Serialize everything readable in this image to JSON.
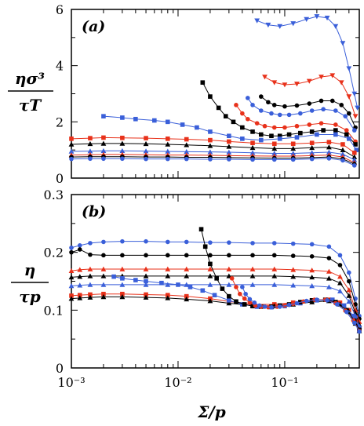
{
  "chart_data": [
    {
      "type": "line",
      "panel_tag": "(a)",
      "ylabel_num": "ησ³",
      "ylabel_den": "τT",
      "xscale": "log",
      "xlim": [
        0.001,
        0.5
      ],
      "ylim": [
        0,
        6
      ],
      "ytick_labels": [
        "0",
        "2",
        "4",
        "6"
      ],
      "series": [
        {
          "color": "#3a5fd9",
          "marker": "tri-down",
          "x": [
            0.055,
            0.07,
            0.09,
            0.12,
            0.16,
            0.2,
            0.25,
            0.3,
            0.35,
            0.4,
            0.45,
            0.48
          ],
          "y": [
            5.6,
            5.45,
            5.4,
            5.5,
            5.65,
            5.75,
            5.7,
            5.4,
            4.8,
            3.9,
            3.0,
            2.5
          ]
        },
        {
          "color": "#e8311a",
          "marker": "tri-down",
          "x": [
            0.065,
            0.08,
            0.1,
            0.13,
            0.17,
            0.22,
            0.28,
            0.34,
            0.4,
            0.46
          ],
          "y": [
            3.6,
            3.4,
            3.32,
            3.35,
            3.45,
            3.6,
            3.65,
            3.4,
            2.9,
            2.2
          ]
        },
        {
          "color": "#000000",
          "marker": "circle",
          "x": [
            0.06,
            0.07,
            0.08,
            0.1,
            0.13,
            0.17,
            0.22,
            0.28,
            0.34,
            0.4,
            0.46
          ],
          "y": [
            2.9,
            2.7,
            2.6,
            2.55,
            2.58,
            2.65,
            2.75,
            2.75,
            2.6,
            2.3,
            1.8
          ]
        },
        {
          "color": "#3a5fd9",
          "marker": "circle",
          "x": [
            0.045,
            0.05,
            0.06,
            0.075,
            0.09,
            0.11,
            0.14,
            0.18,
            0.23,
            0.3,
            0.37,
            0.45
          ],
          "y": [
            2.85,
            2.6,
            2.4,
            2.3,
            2.25,
            2.25,
            2.3,
            2.4,
            2.45,
            2.4,
            2.2,
            1.7
          ]
        },
        {
          "color": "#e8311a",
          "marker": "circle",
          "x": [
            0.035,
            0.04,
            0.045,
            0.055,
            0.065,
            0.08,
            0.1,
            0.13,
            0.17,
            0.22,
            0.3,
            0.38,
            0.46
          ],
          "y": [
            2.6,
            2.3,
            2.1,
            1.95,
            1.85,
            1.8,
            1.8,
            1.85,
            1.9,
            1.95,
            1.9,
            1.7,
            1.3
          ]
        },
        {
          "color": "#000000",
          "marker": "square",
          "x": [
            0.017,
            0.02,
            0.024,
            0.028,
            0.033,
            0.04,
            0.05,
            0.06,
            0.075,
            0.09,
            0.11,
            0.14,
            0.18,
            0.23,
            0.3,
            0.38,
            0.46
          ],
          "y": [
            3.4,
            2.9,
            2.5,
            2.2,
            2.0,
            1.8,
            1.65,
            1.55,
            1.5,
            1.5,
            1.55,
            1.6,
            1.65,
            1.7,
            1.7,
            1.55,
            1.2
          ]
        },
        {
          "color": "#3a5fd9",
          "marker": "square",
          "x": [
            0.002,
            0.003,
            0.004,
            0.006,
            0.008,
            0.011,
            0.015,
            0.02,
            0.03,
            0.04,
            0.06,
            0.09,
            0.13,
            0.2,
            0.3,
            0.4,
            0.47
          ],
          "y": [
            2.2,
            2.15,
            2.1,
            2.05,
            2.0,
            1.9,
            1.8,
            1.65,
            1.5,
            1.4,
            1.35,
            1.4,
            1.45,
            1.55,
            1.55,
            1.4,
            1.0
          ]
        },
        {
          "color": "#e8311a",
          "marker": "square",
          "x": [
            0.001,
            0.0015,
            0.002,
            0.003,
            0.005,
            0.008,
            0.012,
            0.02,
            0.03,
            0.05,
            0.08,
            0.12,
            0.18,
            0.26,
            0.35,
            0.45
          ],
          "y": [
            1.4,
            1.42,
            1.44,
            1.43,
            1.42,
            1.4,
            1.38,
            1.35,
            1.3,
            1.25,
            1.22,
            1.22,
            1.25,
            1.28,
            1.2,
            0.9
          ]
        },
        {
          "color": "#000000",
          "marker": "tri-up",
          "x": [
            0.001,
            0.0015,
            0.002,
            0.003,
            0.005,
            0.008,
            0.012,
            0.02,
            0.03,
            0.05,
            0.08,
            0.12,
            0.18,
            0.26,
            0.35,
            0.45
          ],
          "y": [
            1.2,
            1.22,
            1.23,
            1.23,
            1.22,
            1.2,
            1.18,
            1.15,
            1.12,
            1.08,
            1.05,
            1.05,
            1.08,
            1.1,
            1.0,
            0.75
          ]
        },
        {
          "color": "#3a5fd9",
          "marker": "tri-up",
          "x": [
            0.001,
            0.0015,
            0.002,
            0.003,
            0.005,
            0.008,
            0.012,
            0.02,
            0.03,
            0.05,
            0.08,
            0.12,
            0.18,
            0.26,
            0.35,
            0.45
          ],
          "y": [
            0.95,
            0.96,
            0.97,
            0.97,
            0.96,
            0.95,
            0.94,
            0.93,
            0.92,
            0.9,
            0.88,
            0.88,
            0.9,
            0.92,
            0.85,
            0.65
          ]
        },
        {
          "color": "#e8311a",
          "marker": "tri-up",
          "x": [
            0.001,
            0.0015,
            0.002,
            0.003,
            0.005,
            0.008,
            0.012,
            0.02,
            0.03,
            0.05,
            0.08,
            0.12,
            0.18,
            0.26,
            0.35,
            0.45
          ],
          "y": [
            0.82,
            0.83,
            0.84,
            0.84,
            0.83,
            0.82,
            0.82,
            0.81,
            0.8,
            0.79,
            0.78,
            0.78,
            0.8,
            0.82,
            0.75,
            0.55
          ]
        },
        {
          "color": "#000000",
          "marker": "circle",
          "x": [
            0.001,
            0.0015,
            0.002,
            0.003,
            0.005,
            0.008,
            0.012,
            0.02,
            0.03,
            0.05,
            0.08,
            0.12,
            0.18,
            0.26,
            0.35,
            0.45
          ],
          "y": [
            0.75,
            0.76,
            0.76,
            0.76,
            0.75,
            0.75,
            0.74,
            0.74,
            0.73,
            0.72,
            0.71,
            0.71,
            0.73,
            0.75,
            0.68,
            0.5
          ]
        },
        {
          "color": "#3a5fd9",
          "marker": "circle",
          "x": [
            0.001,
            0.0015,
            0.002,
            0.003,
            0.005,
            0.008,
            0.012,
            0.02,
            0.03,
            0.05,
            0.08,
            0.12,
            0.18,
            0.26,
            0.35,
            0.45
          ],
          "y": [
            0.68,
            0.69,
            0.69,
            0.69,
            0.68,
            0.68,
            0.68,
            0.67,
            0.67,
            0.66,
            0.66,
            0.66,
            0.68,
            0.7,
            0.63,
            0.45
          ]
        }
      ]
    },
    {
      "type": "line",
      "panel_tag": "(b)",
      "ylabel_num": "η",
      "ylabel_den": "τp",
      "xlabel": "Σ/p",
      "xscale": "log",
      "xlim": [
        0.001,
        0.5
      ],
      "ylim": [
        0,
        0.3
      ],
      "ytick_labels": [
        "0",
        "0.1",
        "0.2",
        "0.3"
      ],
      "xtick_labels": [
        "10⁻³",
        "10⁻²",
        "10⁻¹"
      ],
      "series": [
        {
          "color": "#3a5fd9",
          "marker": "circle",
          "x": [
            0.001,
            0.0012,
            0.0015,
            0.002,
            0.003,
            0.005,
            0.008,
            0.012,
            0.02,
            0.03,
            0.05,
            0.08,
            0.12,
            0.18,
            0.26,
            0.33,
            0.4,
            0.46,
            0.5
          ],
          "y": [
            0.208,
            0.212,
            0.216,
            0.218,
            0.219,
            0.219,
            0.218,
            0.218,
            0.217,
            0.217,
            0.216,
            0.216,
            0.215,
            0.214,
            0.21,
            0.195,
            0.165,
            0.12,
            0.09
          ]
        },
        {
          "color": "#000000",
          "marker": "circle",
          "x": [
            0.001,
            0.0012,
            0.0015,
            0.002,
            0.003,
            0.005,
            0.008,
            0.012,
            0.02,
            0.03,
            0.05,
            0.08,
            0.12,
            0.18,
            0.26,
            0.33,
            0.4,
            0.46,
            0.5
          ],
          "y": [
            0.2,
            0.205,
            0.196,
            0.195,
            0.195,
            0.195,
            0.195,
            0.195,
            0.195,
            0.195,
            0.195,
            0.195,
            0.194,
            0.193,
            0.19,
            0.178,
            0.15,
            0.11,
            0.085
          ]
        },
        {
          "color": "#e8311a",
          "marker": "tri-up",
          "x": [
            0.001,
            0.0012,
            0.0015,
            0.002,
            0.003,
            0.005,
            0.008,
            0.012,
            0.02,
            0.03,
            0.05,
            0.08,
            0.12,
            0.18,
            0.26,
            0.33,
            0.4,
            0.46,
            0.5
          ],
          "y": [
            0.168,
            0.17,
            0.171,
            0.171,
            0.171,
            0.171,
            0.171,
            0.171,
            0.171,
            0.171,
            0.171,
            0.171,
            0.17,
            0.169,
            0.167,
            0.158,
            0.135,
            0.1,
            0.08
          ]
        },
        {
          "color": "#000000",
          "marker": "tri-up",
          "x": [
            0.001,
            0.0012,
            0.0015,
            0.002,
            0.003,
            0.005,
            0.008,
            0.012,
            0.02,
            0.03,
            0.05,
            0.08,
            0.12,
            0.18,
            0.26,
            0.33,
            0.4,
            0.46,
            0.5
          ],
          "y": [
            0.157,
            0.158,
            0.159,
            0.159,
            0.159,
            0.159,
            0.159,
            0.159,
            0.159,
            0.159,
            0.159,
            0.159,
            0.158,
            0.157,
            0.155,
            0.147,
            0.125,
            0.095,
            0.075
          ]
        },
        {
          "color": "#3a5fd9",
          "marker": "tri-up",
          "x": [
            0.001,
            0.0012,
            0.0015,
            0.002,
            0.003,
            0.005,
            0.008,
            0.012,
            0.02,
            0.03,
            0.05,
            0.08,
            0.12,
            0.18,
            0.26,
            0.33,
            0.4,
            0.46,
            0.5
          ],
          "y": [
            0.142,
            0.143,
            0.144,
            0.144,
            0.144,
            0.144,
            0.144,
            0.144,
            0.144,
            0.144,
            0.144,
            0.144,
            0.143,
            0.142,
            0.14,
            0.133,
            0.115,
            0.09,
            0.072
          ]
        },
        {
          "color": "#e8311a",
          "marker": "square",
          "x": [
            0.001,
            0.0012,
            0.0015,
            0.002,
            0.003,
            0.005,
            0.008,
            0.012,
            0.02,
            0.03,
            0.05,
            0.08,
            0.12,
            0.18,
            0.26,
            0.33,
            0.4,
            0.46,
            0.5
          ],
          "y": [
            0.125,
            0.126,
            0.127,
            0.128,
            0.128,
            0.127,
            0.126,
            0.124,
            0.12,
            0.115,
            0.11,
            0.11,
            0.113,
            0.117,
            0.118,
            0.113,
            0.1,
            0.08,
            0.066
          ]
        },
        {
          "color": "#000000",
          "marker": "tri-up",
          "x": [
            0.001,
            0.0012,
            0.0015,
            0.002,
            0.003,
            0.005,
            0.008,
            0.012,
            0.02,
            0.03,
            0.05,
            0.08,
            0.12,
            0.18,
            0.26,
            0.33,
            0.4,
            0.46,
            0.5
          ],
          "y": [
            0.12,
            0.121,
            0.122,
            0.123,
            0.123,
            0.122,
            0.121,
            0.119,
            0.116,
            0.112,
            0.108,
            0.107,
            0.11,
            0.114,
            0.116,
            0.11,
            0.097,
            0.077,
            0.064
          ]
        },
        {
          "color": "#3a5fd9",
          "marker": "square",
          "x": [
            0.0025,
            0.003,
            0.004,
            0.005,
            0.007,
            0.01,
            0.013,
            0.017,
            0.022,
            0.03,
            0.04,
            0.055,
            0.075,
            0.1,
            0.14,
            0.2,
            0.28,
            0.36,
            0.44,
            0.5
          ],
          "y": [
            0.158,
            0.155,
            0.152,
            0.15,
            0.147,
            0.144,
            0.14,
            0.134,
            0.126,
            0.117,
            0.11,
            0.106,
            0.105,
            0.107,
            0.112,
            0.117,
            0.118,
            0.108,
            0.09,
            0.07
          ]
        },
        {
          "color": "#000000",
          "marker": "square",
          "x": [
            0.0165,
            0.018,
            0.02,
            0.023,
            0.026,
            0.03,
            0.035,
            0.042,
            0.05,
            0.06,
            0.075,
            0.09,
            0.11,
            0.14,
            0.18,
            0.24,
            0.3,
            0.38,
            0.45,
            0.5
          ],
          "y": [
            0.24,
            0.21,
            0.18,
            0.155,
            0.137,
            0.124,
            0.115,
            0.11,
            0.107,
            0.106,
            0.106,
            0.108,
            0.11,
            0.114,
            0.117,
            0.118,
            0.114,
            0.1,
            0.082,
            0.066
          ]
        },
        {
          "color": "#e8311a",
          "marker": "circle",
          "x": [
            0.032,
            0.035,
            0.038,
            0.042,
            0.047,
            0.053,
            0.06,
            0.07,
            0.085,
            0.1,
            0.12,
            0.15,
            0.19,
            0.24,
            0.3,
            0.37,
            0.44,
            0.5
          ],
          "y": [
            0.155,
            0.14,
            0.128,
            0.12,
            0.113,
            0.108,
            0.106,
            0.105,
            0.106,
            0.108,
            0.111,
            0.115,
            0.118,
            0.118,
            0.112,
            0.099,
            0.082,
            0.064
          ]
        },
        {
          "color": "#3a5fd9",
          "marker": "circle",
          "x": [
            0.04,
            0.043,
            0.047,
            0.052,
            0.058,
            0.065,
            0.075,
            0.09,
            0.11,
            0.13,
            0.16,
            0.2,
            0.25,
            0.31,
            0.38,
            0.45,
            0.5
          ],
          "y": [
            0.14,
            0.128,
            0.119,
            0.113,
            0.108,
            0.106,
            0.105,
            0.106,
            0.109,
            0.112,
            0.116,
            0.118,
            0.117,
            0.11,
            0.097,
            0.078,
            0.063
          ]
        }
      ]
    }
  ]
}
